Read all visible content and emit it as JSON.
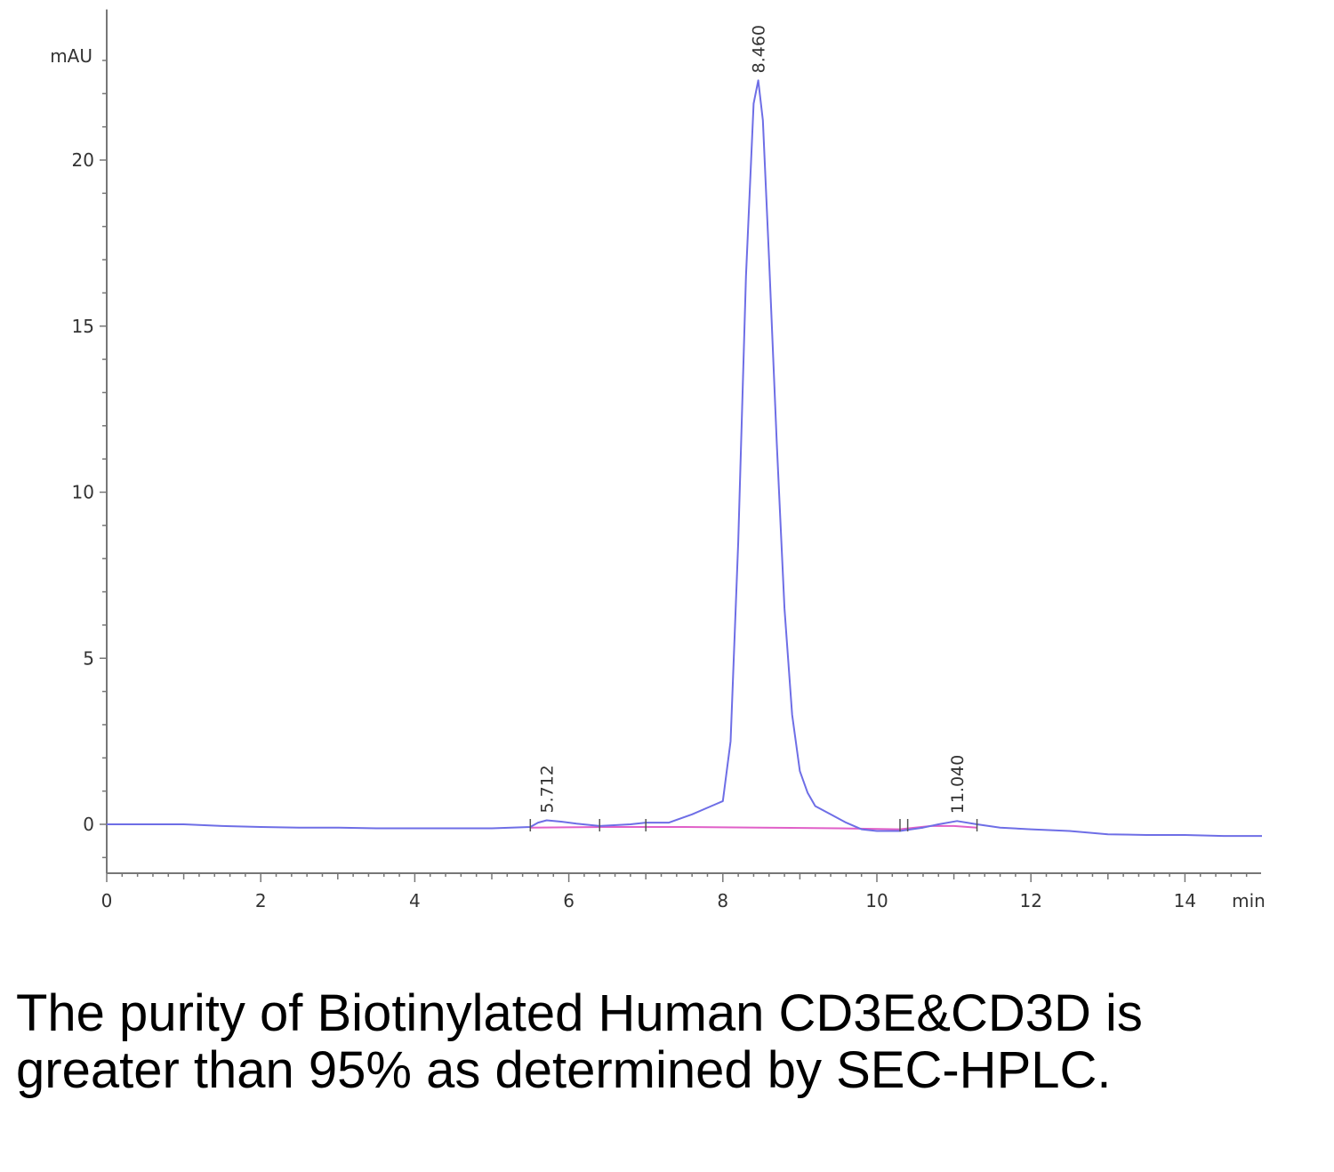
{
  "chart_data": {
    "type": "line",
    "title": "",
    "ylabel": "mAU",
    "xlabel": "min",
    "xlim": [
      0,
      15
    ],
    "ylim": [
      -1.5,
      24
    ],
    "x_ticks": [
      "0",
      "2",
      "4",
      "6",
      "8",
      "10",
      "12",
      "14"
    ],
    "y_ticks": [
      "0",
      "5",
      "10",
      "15",
      "20"
    ],
    "grid": false,
    "colors": {
      "signal": "#6e6ee6",
      "baseline": "#e060c8",
      "axis": "#777777"
    },
    "series": [
      {
        "x": [
          0,
          0.5,
          1,
          1.5,
          2,
          2.5,
          3,
          3.5,
          4,
          4.5,
          5,
          5.5,
          5.6,
          5.712,
          5.9,
          6.1,
          6.4,
          6.8,
          7.0,
          7.3,
          7.6,
          7.85,
          8.0,
          8.1,
          8.2,
          8.3,
          8.4,
          8.46,
          8.52,
          8.6,
          8.7,
          8.8,
          8.9,
          9.0,
          9.1,
          9.2,
          9.4,
          9.6,
          9.8,
          10.0,
          10.3,
          10.6,
          10.8,
          11.04,
          11.3,
          11.6,
          12.0,
          12.5,
          13.0,
          13.5,
          14.0,
          14.5,
          15.0
        ],
        "values": [
          0.0,
          0.0,
          0.0,
          -0.05,
          -0.08,
          -0.1,
          -0.1,
          -0.12,
          -0.12,
          -0.12,
          -0.12,
          -0.08,
          0.05,
          0.12,
          0.08,
          0.02,
          -0.05,
          0.0,
          0.05,
          0.05,
          0.3,
          0.55,
          0.7,
          2.5,
          8.5,
          16.5,
          21.7,
          22.4,
          21.2,
          17.0,
          11.5,
          6.5,
          3.3,
          1.6,
          0.95,
          0.55,
          0.3,
          0.05,
          -0.15,
          -0.2,
          -0.2,
          -0.1,
          0.0,
          0.1,
          0.0,
          -0.1,
          -0.15,
          -0.2,
          -0.3,
          -0.32,
          -0.32,
          -0.35,
          -0.35
        ]
      },
      {
        "x": [
          5.5,
          6.5,
          7.5,
          8.5,
          9.5,
          10.3,
          10.7,
          11.0,
          11.3
        ],
        "values": [
          -0.1,
          -0.08,
          -0.08,
          -0.1,
          -0.12,
          -0.15,
          -0.05,
          -0.05,
          -0.1
        ]
      }
    ],
    "peak_labels": [
      "5.712",
      "8.460",
      "11.040"
    ],
    "peak_x": [
      5.712,
      8.46,
      11.04
    ],
    "peak_y": [
      0.12,
      22.4,
      0.1
    ]
  },
  "caption": "The purity of Biotinylated Human CD3E&CD3D is greater than 95% as determined by SEC-HPLC."
}
